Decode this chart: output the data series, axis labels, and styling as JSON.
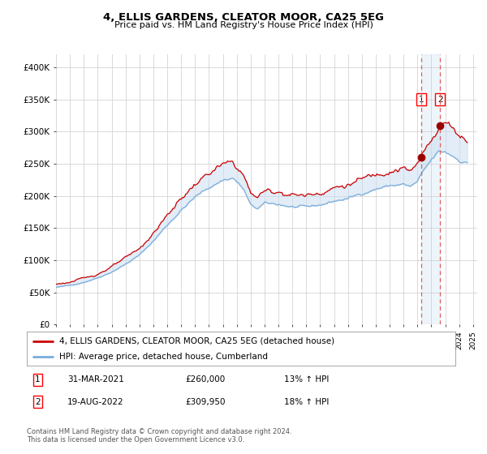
{
  "title": "4, ELLIS GARDENS, CLEATOR MOOR, CA25 5EG",
  "subtitle": "Price paid vs. HM Land Registry's House Price Index (HPI)",
  "ylim": [
    0,
    420000
  ],
  "yticks": [
    0,
    50000,
    100000,
    150000,
    200000,
    250000,
    300000,
    350000,
    400000
  ],
  "ytick_labels": [
    "£0",
    "£50K",
    "£100K",
    "£150K",
    "£200K",
    "£250K",
    "£300K",
    "£350K",
    "£400K"
  ],
  "hpi_color": "#7aaddc",
  "price_color": "#cc0000",
  "fill_color": "#c8ddf0",
  "bg_color": "#ffffff",
  "grid_color": "#cccccc",
  "vline_color": "#e06060",
  "legend_label_price": "4, ELLIS GARDENS, CLEATOR MOOR, CA25 5EG (detached house)",
  "legend_label_hpi": "HPI: Average price, detached house, Cumberland",
  "transaction1_date": "31-MAR-2021",
  "transaction1_price": "£260,000",
  "transaction1_hpi": "13% ↑ HPI",
  "transaction2_date": "19-AUG-2022",
  "transaction2_price": "£309,950",
  "transaction2_hpi": "18% ↑ HPI",
  "footer": "Contains HM Land Registry data © Crown copyright and database right 2024.\nThis data is licensed under the Open Government Licence v3.0.",
  "vline1_x": 2021.25,
  "vline2_x": 2022.63,
  "marker1_price": 260000,
  "marker2_price": 309950,
  "xlim_left": 1995.0,
  "xlim_right": 2025.3
}
